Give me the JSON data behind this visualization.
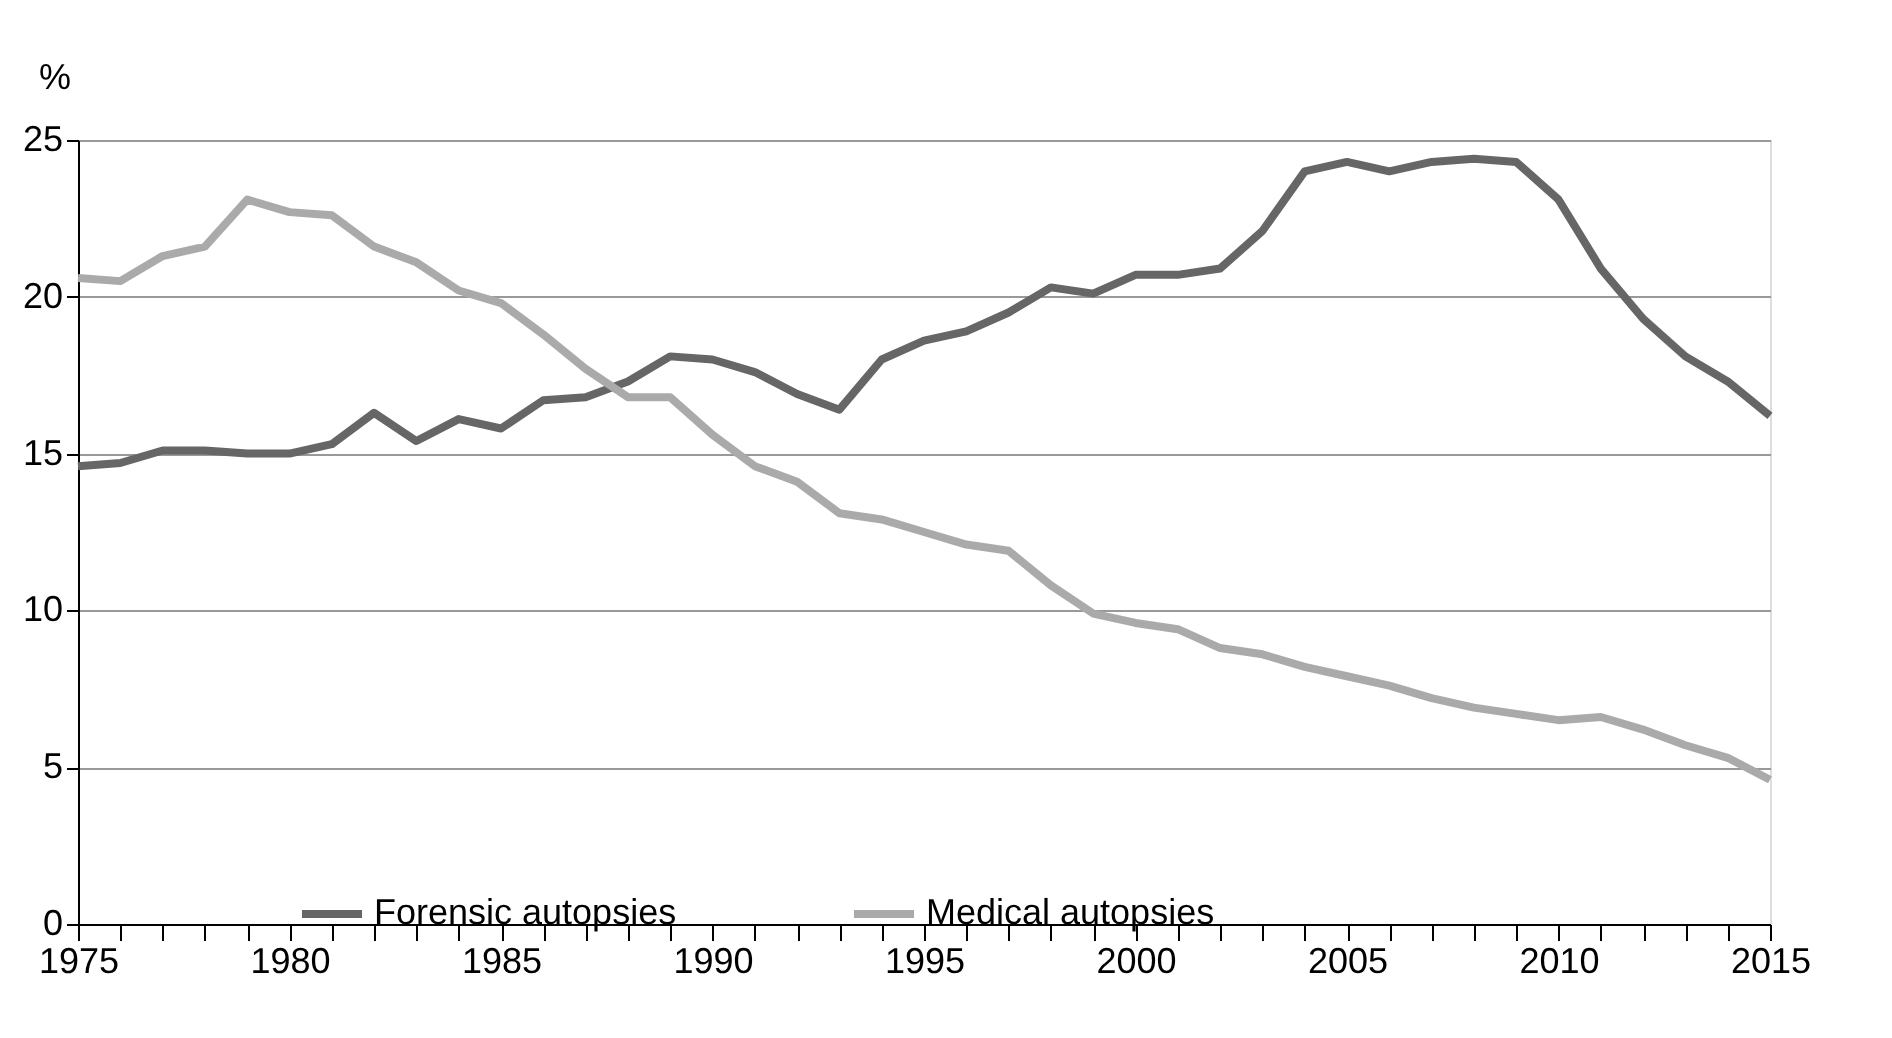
{
  "chart_data": {
    "type": "line",
    "ylabel": "%",
    "x": [
      1975,
      1976,
      1977,
      1978,
      1979,
      1980,
      1981,
      1982,
      1983,
      1984,
      1985,
      1986,
      1987,
      1988,
      1989,
      1990,
      1991,
      1992,
      1993,
      1994,
      1995,
      1996,
      1997,
      1998,
      1999,
      2000,
      2001,
      2002,
      2003,
      2004,
      2005,
      2006,
      2007,
      2008,
      2009,
      2010,
      2011,
      2012,
      2013,
      2014,
      2015
    ],
    "series": [
      {
        "name": "Forensic autopsies",
        "color": "#666666",
        "values": [
          14.6,
          14.7,
          15.1,
          15.1,
          15.0,
          15.0,
          15.3,
          16.3,
          15.4,
          16.1,
          15.8,
          16.7,
          16.8,
          17.3,
          18.1,
          18.0,
          17.6,
          16.9,
          16.4,
          18.0,
          18.6,
          18.9,
          19.5,
          20.3,
          20.1,
          20.7,
          20.7,
          20.9,
          22.1,
          24.0,
          24.3,
          24.0,
          24.3,
          24.4,
          24.3,
          23.1,
          20.9,
          19.3,
          18.1,
          17.3,
          16.2
        ]
      },
      {
        "name": "Medical autopsies",
        "color": "#aaaaaa",
        "values": [
          20.6,
          20.5,
          21.3,
          21.6,
          23.1,
          22.7,
          22.6,
          21.6,
          21.1,
          20.2,
          19.8,
          18.8,
          17.7,
          16.8,
          16.8,
          15.6,
          14.6,
          14.1,
          13.1,
          12.9,
          12.5,
          12.1,
          11.9,
          10.8,
          9.9,
          9.6,
          9.4,
          8.8,
          8.6,
          8.2,
          7.9,
          7.6,
          7.2,
          6.9,
          6.7,
          6.5,
          6.6,
          6.2,
          5.7,
          5.3,
          4.6
        ]
      }
    ],
    "xlim": [
      1975,
      2015
    ],
    "xticks": [
      1975,
      {
        "value": 1976,
        "label": null
      },
      {
        "value": 1977,
        "label": null
      },
      {
        "value": 1978,
        "label": null
      },
      {
        "value": 1979,
        "label": null
      },
      1980,
      {
        "value": 1981,
        "label": null
      },
      {
        "value": 1982,
        "label": null
      },
      {
        "value": 1983,
        "label": null
      },
      {
        "value": 1984,
        "label": null
      },
      1985,
      {
        "value": 1986,
        "label": null
      },
      {
        "value": 1987,
        "label": null
      },
      {
        "value": 1988,
        "label": null
      },
      {
        "value": 1989,
        "label": null
      },
      1990,
      {
        "value": 1991,
        "label": null
      },
      {
        "value": 1992,
        "label": null
      },
      {
        "value": 1993,
        "label": null
      },
      {
        "value": 1994,
        "label": null
      },
      1995,
      {
        "value": 1996,
        "label": null
      },
      {
        "value": 1997,
        "label": null
      },
      {
        "value": 1998,
        "label": null
      },
      {
        "value": 1999,
        "label": null
      },
      2000,
      {
        "value": 2001,
        "label": null
      },
      {
        "value": 2002,
        "label": null
      },
      {
        "value": 2003,
        "label": null
      },
      {
        "value": 2004,
        "label": null
      },
      2005,
      {
        "value": 2006,
        "label": null
      },
      {
        "value": 2007,
        "label": null
      },
      {
        "value": 2008,
        "label": null
      },
      {
        "value": 2009,
        "label": null
      },
      2010,
      {
        "value": 2011,
        "label": null
      },
      {
        "value": 2012,
        "label": null
      },
      {
        "value": 2013,
        "label": null
      },
      {
        "value": 2014,
        "label": null
      },
      2015
    ],
    "ylim": [
      0,
      25
    ],
    "yticks": [
      0,
      5,
      10,
      15,
      20,
      25
    ],
    "grid": "y",
    "legend": "bottom",
    "marker": "none",
    "line_style": "solid"
  }
}
